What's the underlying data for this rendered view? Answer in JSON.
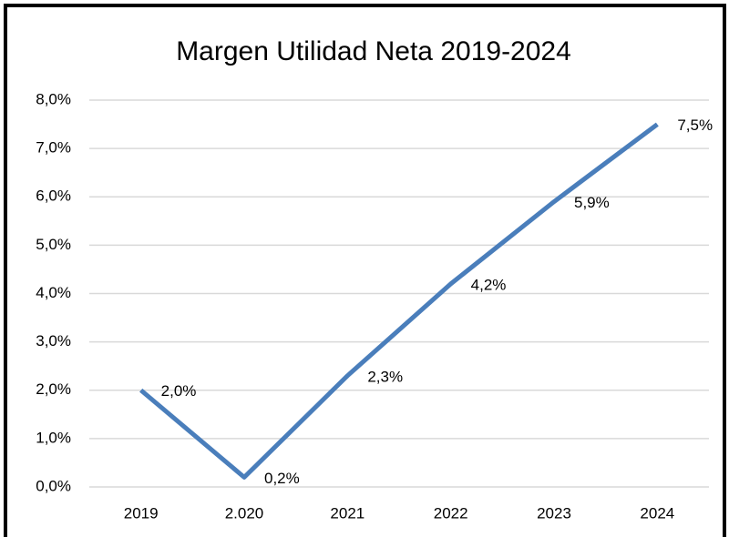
{
  "chart_data": {
    "type": "line",
    "title": "Margen Utilidad Neta 2019-2024",
    "categories": [
      "2019",
      "2.020",
      "2021",
      "2022",
      "2023",
      "2024"
    ],
    "series": [
      {
        "color": "#4a7ebb",
        "values": [
          2.0,
          0.2,
          2.3,
          4.2,
          5.9,
          7.5
        ],
        "value_labels": [
          "2,0%",
          "0,2%",
          "2,3%",
          "4,2%",
          "5,9%",
          "7,5%"
        ]
      }
    ],
    "ylim": [
      0,
      8
    ],
    "yticks": [
      {
        "value": 0,
        "label": "0,0%"
      },
      {
        "value": 1,
        "label": "1,0%"
      },
      {
        "value": 2,
        "label": "2,0%"
      },
      {
        "value": 3,
        "label": "3,0%"
      },
      {
        "value": 4,
        "label": "4,0%"
      },
      {
        "value": 5,
        "label": "5,0%"
      },
      {
        "value": 6,
        "label": "6,0%"
      },
      {
        "value": 7,
        "label": "7,0%"
      },
      {
        "value": 8,
        "label": "8,0%"
      }
    ],
    "grid": true
  }
}
